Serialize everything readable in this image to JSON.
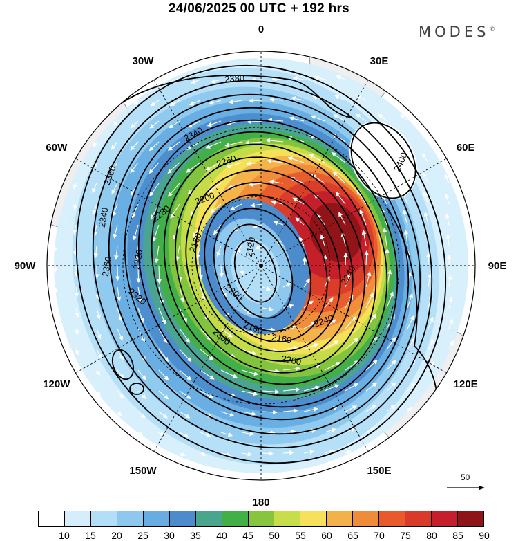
{
  "header": {
    "title": "24/06/2025  00 UTC  + 192 hrs",
    "brand": "MODES",
    "brand_mark": "©"
  },
  "map": {
    "projection": "polar stereographic (south pole)",
    "longitude_labels": [
      "0",
      "30E",
      "60E",
      "90E",
      "120E",
      "150E",
      "180",
      "150W",
      "120W",
      "90W",
      "60W",
      "30W"
    ],
    "contour_labels": [
      "2380",
      "2340",
      "2360",
      "2260",
      "2400",
      "2200",
      "2280",
      "2320",
      "2120",
      "2160",
      "2180",
      "2300",
      "2240",
      "2220"
    ],
    "colors": {
      "land": "#efefef",
      "coast": "#555555",
      "contour": "#000000",
      "vector": "#ffffff"
    }
  },
  "colorbar": {
    "ticks": [
      "10",
      "15",
      "20",
      "25",
      "30",
      "35",
      "40",
      "45",
      "50",
      "55",
      "60",
      "65",
      "70",
      "75",
      "80",
      "85",
      "90"
    ],
    "colors": [
      "#ffffff",
      "#d6eefc",
      "#b3def7",
      "#8ec8ee",
      "#68ade2",
      "#4c8ccc",
      "#4aa58d",
      "#42b046",
      "#86c53d",
      "#c7dd49",
      "#f7e05a",
      "#f3b14a",
      "#ef8c3a",
      "#e85a2c",
      "#d93b2a",
      "#c41f2a",
      "#8e1418"
    ]
  },
  "legend": {
    "vector_scale": "50"
  }
}
